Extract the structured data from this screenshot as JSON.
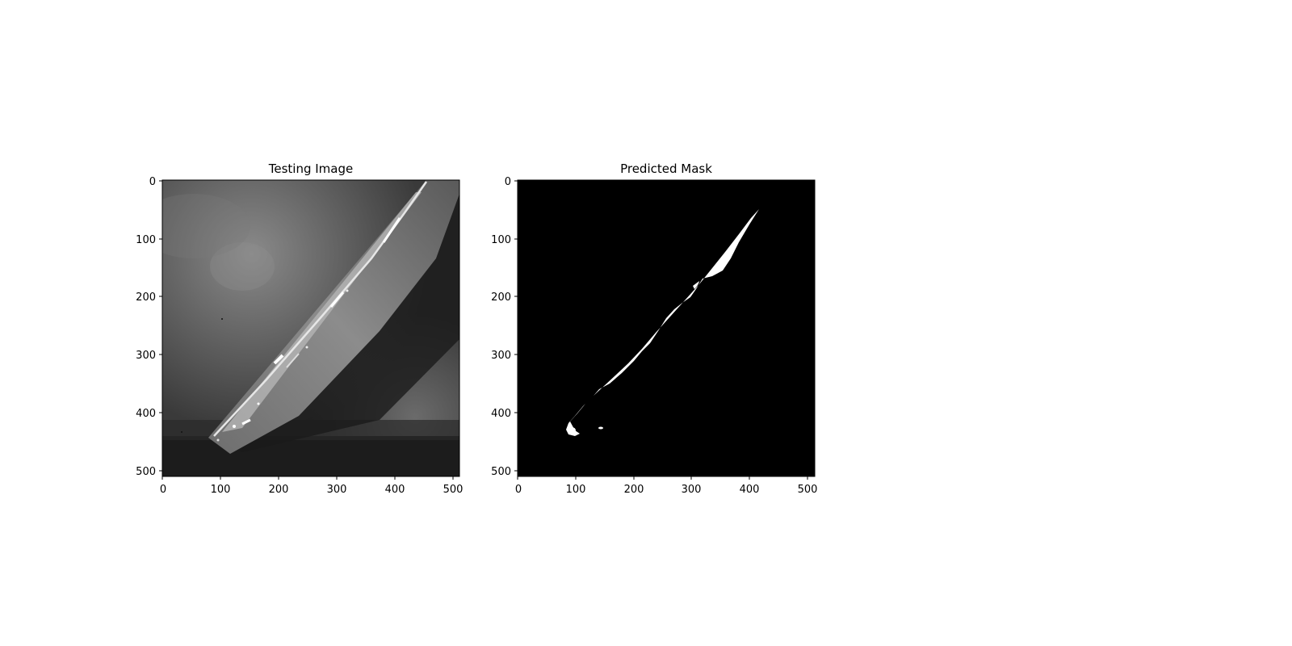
{
  "figure": {
    "panels": [
      {
        "title": "Testing Image",
        "image": "grayscale-micrograph",
        "xticks": [
          "0",
          "100",
          "200",
          "300",
          "400",
          "500"
        ],
        "yticks": [
          "0",
          "100",
          "200",
          "300",
          "400",
          "500"
        ],
        "xlim": [
          0,
          512
        ],
        "ylim": [
          512,
          0
        ]
      },
      {
        "title": "Predicted Mask",
        "image": "binary-segmentation-mask",
        "xticks": [
          "0",
          "100",
          "200",
          "300",
          "400",
          "500"
        ],
        "yticks": [
          "0",
          "100",
          "200",
          "300",
          "400",
          "500"
        ],
        "xlim": [
          0,
          512
        ],
        "ylim": [
          512,
          0
        ]
      }
    ],
    "colors": {
      "mask_background": "#000000",
      "mask_foreground": "#ffffff"
    }
  }
}
